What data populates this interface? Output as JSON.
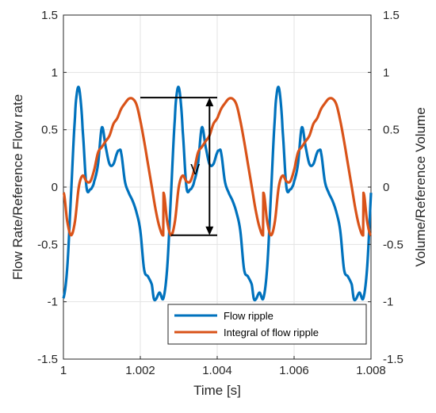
{
  "chart_data": {
    "type": "line",
    "xlabel": "Time [s]",
    "ylabel_left": "Flow Rate/Reference Flow rate",
    "ylabel_right": "Volume/Reference Volume",
    "xlim": [
      1,
      1.008
    ],
    "ylim_left": [
      -1.5,
      1.5
    ],
    "ylim_right": [
      -1.5,
      1.5
    ],
    "xticks": [
      "1",
      "1.002",
      "1.004",
      "1.006",
      "1.008"
    ],
    "yticks_left": [
      "-1.5",
      "-1",
      "-0.5",
      "0",
      "0.5",
      "1",
      "1.5"
    ],
    "yticks_right": [
      "-1.5",
      "-1",
      "-0.5",
      "0",
      "0.5",
      "1",
      "1.5"
    ],
    "grid": true,
    "legend_position": "bottom-right",
    "annotation": "V",
    "series": [
      {
        "name": "Flow ripple",
        "color": "#0072BD",
        "axis": "left",
        "period": 0.0026,
        "x": [
          0,
          0.0001,
          0.0002,
          0.0003,
          0.00035,
          0.0004,
          0.00045,
          0.0005,
          0.0006,
          0.0007,
          0.00075,
          0.0008,
          0.0009,
          0.001,
          0.0011,
          0.0012,
          0.0013,
          0.0014,
          0.00145,
          0.0015,
          0.0016,
          0.0017,
          0.0018,
          0.0019,
          0.002,
          0.0021,
          0.0022,
          0.0023,
          0.00235,
          0.0024,
          0.0025,
          0.0026
        ],
        "y": [
          -0.97,
          -0.7,
          -0.05,
          0.6,
          0.82,
          0.87,
          0.75,
          0.5,
          0.0,
          -0.02,
          0.0,
          0.05,
          0.2,
          0.52,
          0.35,
          0.2,
          0.2,
          0.3,
          0.32,
          0.3,
          0.05,
          -0.05,
          -0.12,
          -0.22,
          -0.38,
          -0.72,
          -0.78,
          -0.85,
          -0.97,
          -0.98,
          -0.92,
          -0.97
        ]
      },
      {
        "name": "Integral of flow ripple",
        "color": "#D95319",
        "axis": "right",
        "period": 0.0026,
        "x": [
          0,
          0.0001,
          0.0002,
          0.0003,
          0.0004,
          0.0005,
          0.0006,
          0.0007,
          0.0008,
          0.0009,
          0.001,
          0.0011,
          0.0012,
          0.0013,
          0.0014,
          0.0015,
          0.0016,
          0.0017,
          0.0018,
          0.0019,
          0.002,
          0.0021,
          0.0022,
          0.0023,
          0.0024,
          0.0025,
          0.0026
        ],
        "y": [
          -0.05,
          -0.3,
          -0.42,
          -0.3,
          0.0,
          0.1,
          0.05,
          0.05,
          0.15,
          0.3,
          0.35,
          0.4,
          0.45,
          0.55,
          0.6,
          0.68,
          0.73,
          0.77,
          0.77,
          0.72,
          0.58,
          0.4,
          0.2,
          0.0,
          -0.2,
          -0.35,
          -0.42
        ]
      }
    ]
  }
}
